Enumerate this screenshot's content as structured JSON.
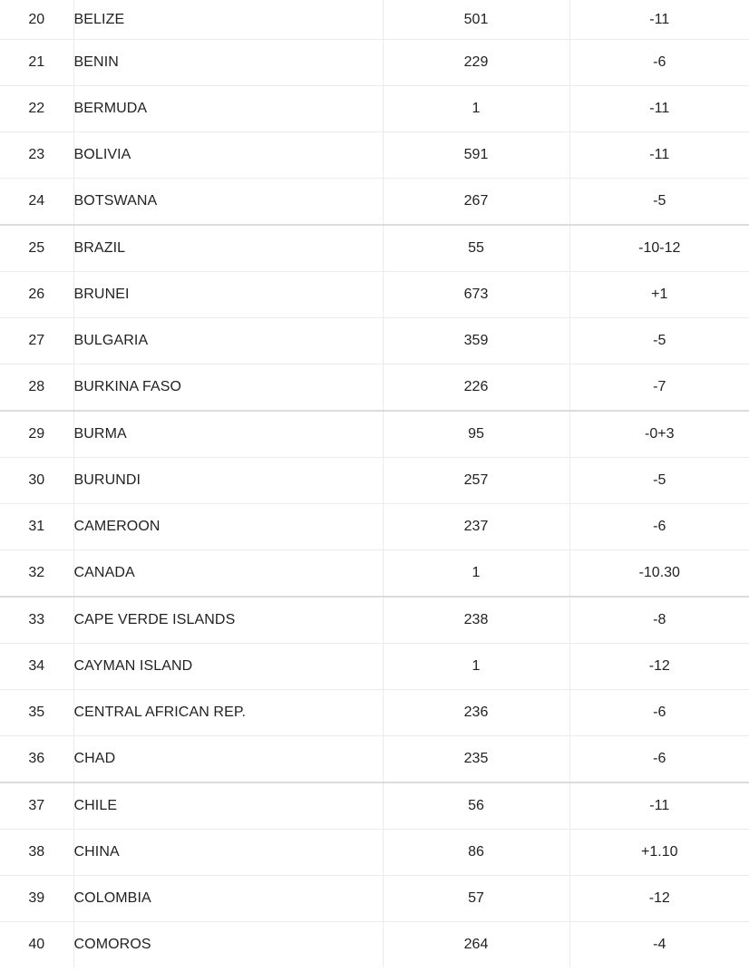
{
  "rows": [
    {
      "num": "20",
      "country": "BELIZE",
      "code": "501",
      "diff": "-11"
    },
    {
      "num": "21",
      "country": "BENIN",
      "code": "229",
      "diff": "-6"
    },
    {
      "num": "22",
      "country": "BERMUDA",
      "code": "1",
      "diff": "-11"
    },
    {
      "num": "23",
      "country": "BOLIVIA",
      "code": "591",
      "diff": "-11"
    },
    {
      "num": "24",
      "country": "BOTSWANA",
      "code": "267",
      "diff": "-5"
    },
    {
      "num": "25",
      "country": "BRAZIL",
      "code": "55",
      "diff": "-10-12"
    },
    {
      "num": "26",
      "country": "BRUNEI",
      "code": "673",
      "diff": "+1"
    },
    {
      "num": "27",
      "country": "BULGARIA",
      "code": "359",
      "diff": "-5"
    },
    {
      "num": "28",
      "country": "BURKINA FASO",
      "code": "226",
      "diff": "-7"
    },
    {
      "num": "29",
      "country": "BURMA",
      "code": "95",
      "diff": "-0+3"
    },
    {
      "num": "30",
      "country": "BURUNDI",
      "code": "257",
      "diff": "-5"
    },
    {
      "num": "31",
      "country": "CAMEROON",
      "code": "237",
      "diff": "-6"
    },
    {
      "num": "32",
      "country": "CANADA",
      "code": "1",
      "diff": "-10.30"
    },
    {
      "num": "33",
      "country": "CAPE VERDE ISLANDS",
      "code": "238",
      "diff": "-8"
    },
    {
      "num": "34",
      "country": "CAYMAN ISLAND",
      "code": "1",
      "diff": "-12"
    },
    {
      "num": "35",
      "country": "CENTRAL AFRICAN REP.",
      "code": "236",
      "diff": "-6"
    },
    {
      "num": "36",
      "country": "CHAD",
      "code": "235",
      "diff": "-6"
    },
    {
      "num": "37",
      "country": "CHILE",
      "code": "56",
      "diff": "-11"
    },
    {
      "num": "38",
      "country": "CHINA",
      "code": "86",
      "diff": "+1.10"
    },
    {
      "num": "39",
      "country": "COLOMBIA",
      "code": "57",
      "diff": "-12"
    },
    {
      "num": "40",
      "country": "COMOROS",
      "code": "264",
      "diff": "-4"
    }
  ]
}
